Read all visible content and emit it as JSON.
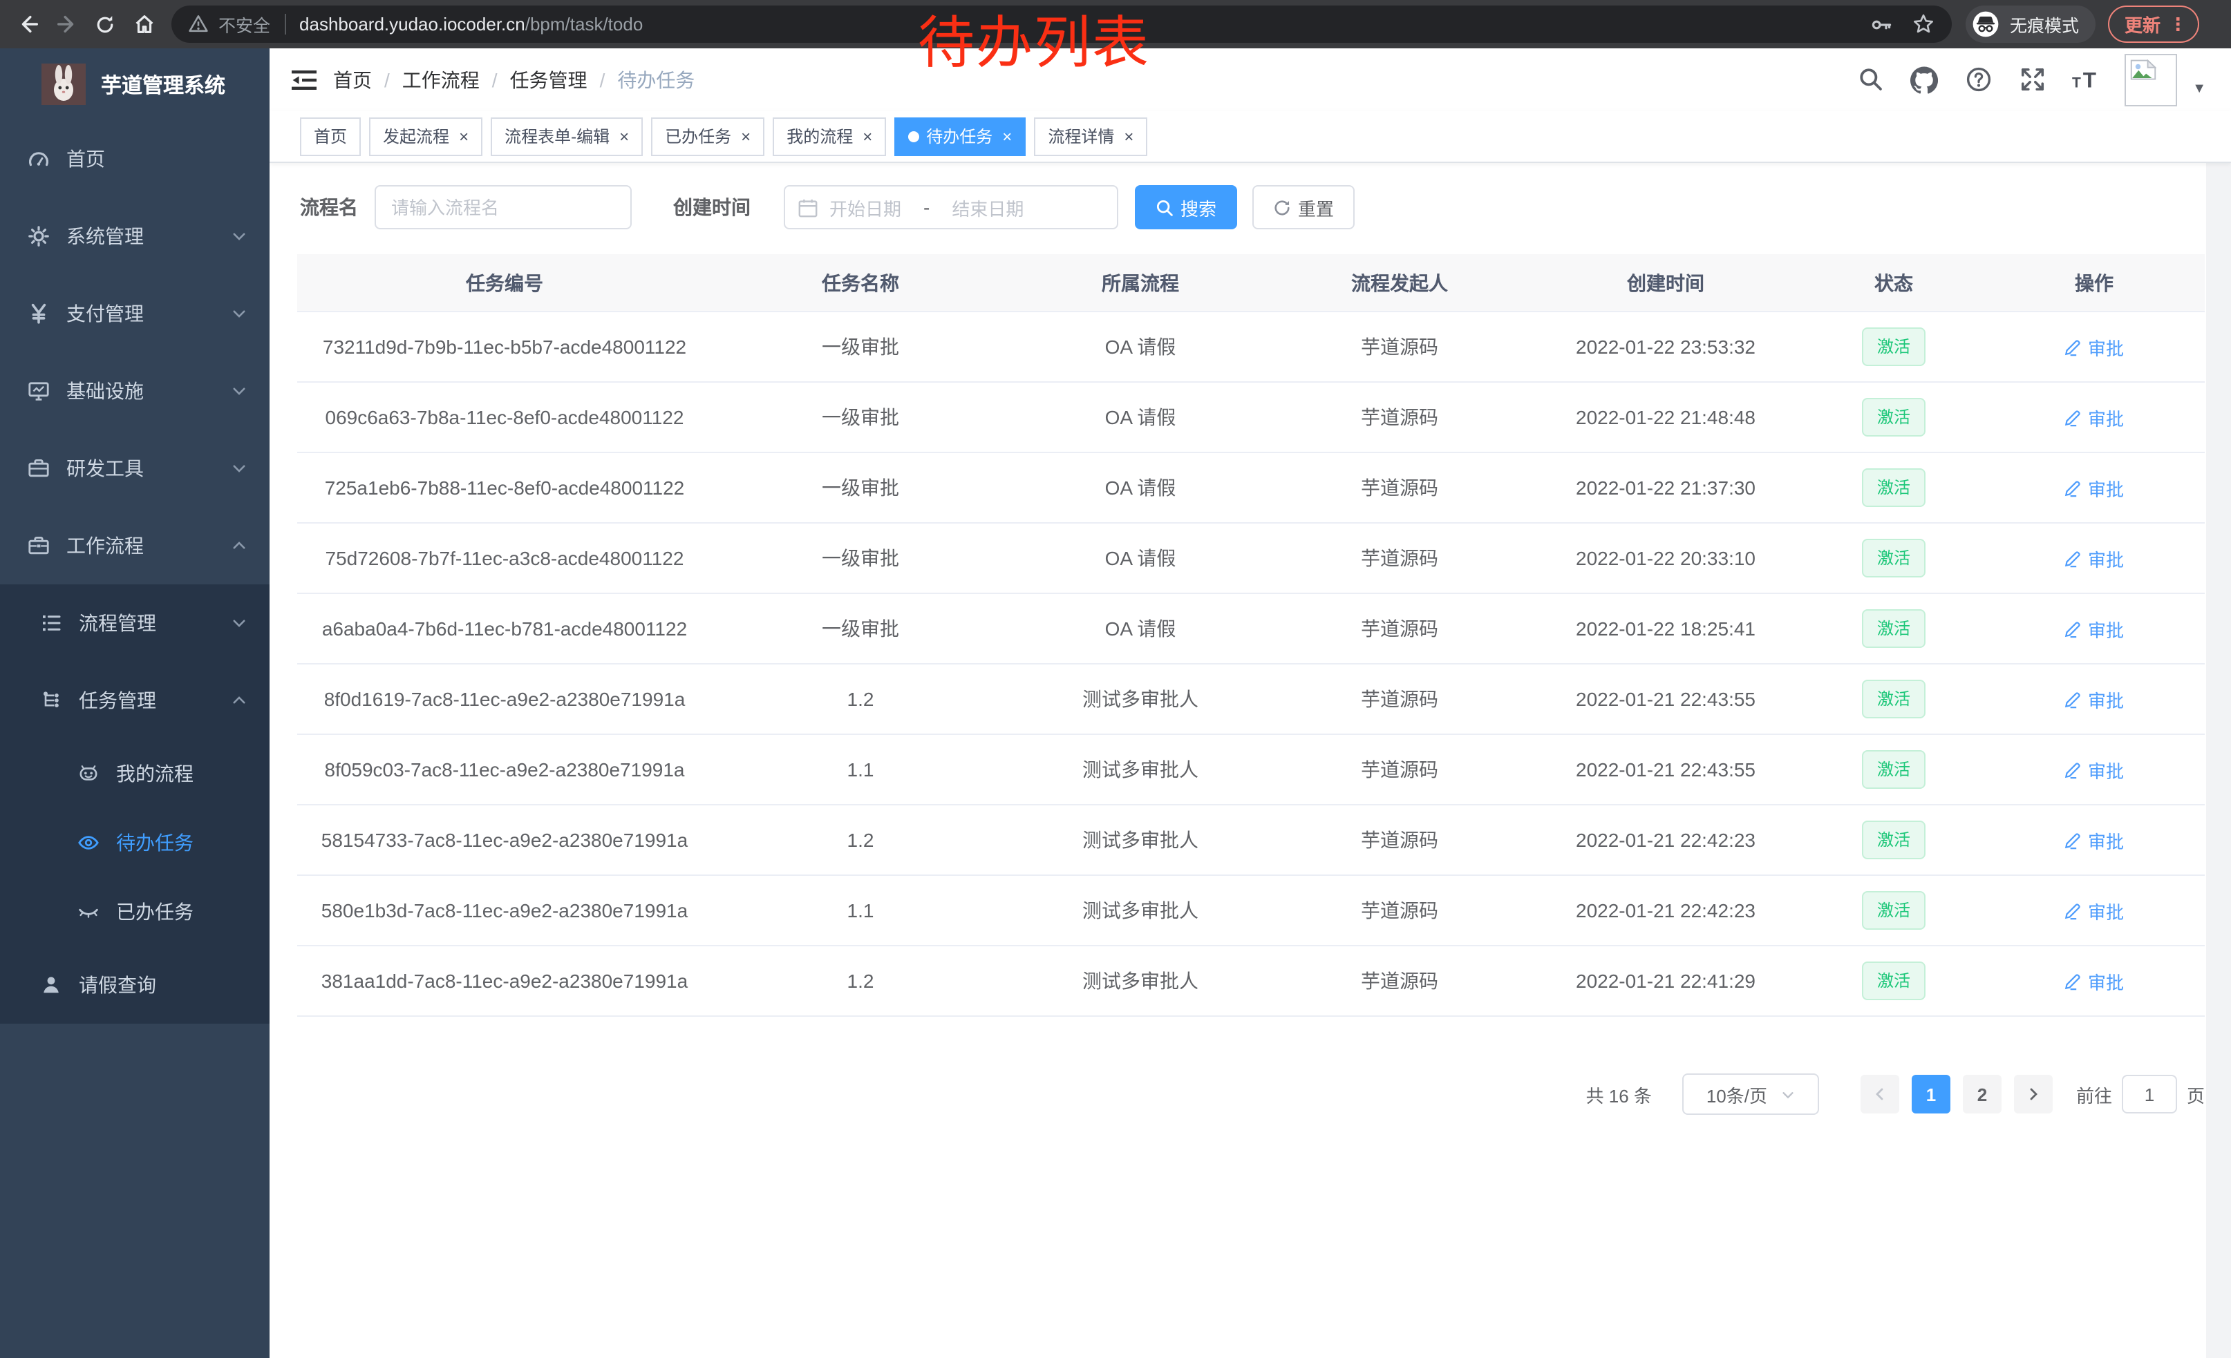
{
  "browser": {
    "security_label": "不安全",
    "url_host": "dashboard.yudao.iocoder.cn",
    "url_path": "/bpm/task/todo",
    "incognito_label": "无痕模式",
    "update_label": "更新"
  },
  "annotation": {
    "text": "待办列表",
    "color": "#fa2f14"
  },
  "sidebar": {
    "logo_title": "芋道管理系统",
    "items": [
      {
        "label": "首页",
        "icon": "dashboard",
        "level": 1
      },
      {
        "label": "系统管理",
        "icon": "gear",
        "level": 1,
        "chevron": "down"
      },
      {
        "label": "支付管理",
        "icon": "yen",
        "level": 1,
        "chevron": "down"
      },
      {
        "label": "基础设施",
        "icon": "monitor",
        "level": 1,
        "chevron": "down"
      },
      {
        "label": "研发工具",
        "icon": "toolbox",
        "level": 1,
        "chevron": "down"
      },
      {
        "label": "工作流程",
        "icon": "briefcase",
        "level": 1,
        "chevron": "up"
      }
    ],
    "submenu": [
      {
        "label": "流程管理",
        "icon": "process-list",
        "level": 2,
        "chevron": "down"
      },
      {
        "label": "任务管理",
        "icon": "task-tree",
        "level": 2,
        "chevron": "up"
      },
      {
        "label": "我的流程",
        "icon": "robot",
        "level": 3
      },
      {
        "label": "待办任务",
        "icon": "eye",
        "level": 3,
        "active": true
      },
      {
        "label": "已办任务",
        "icon": "eye-closed",
        "level": 3
      },
      {
        "label": "请假查询",
        "icon": "user",
        "level": 2
      }
    ]
  },
  "header": {
    "breadcrumb": [
      {
        "label": "首页",
        "sep": "/"
      },
      {
        "label": "工作流程",
        "sep": "/"
      },
      {
        "label": "任务管理",
        "sep": "/"
      },
      {
        "label": "待办任务",
        "current": true
      }
    ]
  },
  "tabs": [
    {
      "label": "首页"
    },
    {
      "label": "发起流程",
      "closable": true
    },
    {
      "label": "流程表单-编辑",
      "closable": true
    },
    {
      "label": "已办任务",
      "closable": true
    },
    {
      "label": "我的流程",
      "closable": true
    },
    {
      "label": "待办任务",
      "closable": true,
      "active": true
    },
    {
      "label": "流程详情",
      "closable": true
    }
  ],
  "filters": {
    "name_label": "流程名",
    "name_placeholder": "请输入流程名",
    "time_label": "创建时间",
    "start_placeholder": "开始日期",
    "range_separator": "-",
    "end_placeholder": "结束日期",
    "search_label": "搜索",
    "reset_label": "重置"
  },
  "table": {
    "columns": [
      {
        "label": "任务编号"
      },
      {
        "label": "任务名称"
      },
      {
        "label": "所属流程"
      },
      {
        "label": "流程发起人"
      },
      {
        "label": "创建时间"
      },
      {
        "label": "状态"
      },
      {
        "label": "操作"
      }
    ],
    "rows": [
      {
        "id": "73211d9d-7b9b-11ec-b5b7-acde48001122",
        "name": "一级审批",
        "process": "OA 请假",
        "starter": "芋道源码",
        "created": "2022-01-22 23:53:32",
        "status": "激活",
        "action": "审批"
      },
      {
        "id": "069c6a63-7b8a-11ec-8ef0-acde48001122",
        "name": "一级审批",
        "process": "OA 请假",
        "starter": "芋道源码",
        "created": "2022-01-22 21:48:48",
        "status": "激活",
        "action": "审批"
      },
      {
        "id": "725a1eb6-7b88-11ec-8ef0-acde48001122",
        "name": "一级审批",
        "process": "OA 请假",
        "starter": "芋道源码",
        "created": "2022-01-22 21:37:30",
        "status": "激活",
        "action": "审批"
      },
      {
        "id": "75d72608-7b7f-11ec-a3c8-acde48001122",
        "name": "一级审批",
        "process": "OA 请假",
        "starter": "芋道源码",
        "created": "2022-01-22 20:33:10",
        "status": "激活",
        "action": "审批"
      },
      {
        "id": "a6aba0a4-7b6d-11ec-b781-acde48001122",
        "name": "一级审批",
        "process": "OA 请假",
        "starter": "芋道源码",
        "created": "2022-01-22 18:25:41",
        "status": "激活",
        "action": "审批"
      },
      {
        "id": "8f0d1619-7ac8-11ec-a9e2-a2380e71991a",
        "name": "1.2",
        "process": "测试多审批人",
        "starter": "芋道源码",
        "created": "2022-01-21 22:43:55",
        "status": "激活",
        "action": "审批"
      },
      {
        "id": "8f059c03-7ac8-11ec-a9e2-a2380e71991a",
        "name": "1.1",
        "process": "测试多审批人",
        "starter": "芋道源码",
        "created": "2022-01-21 22:43:55",
        "status": "激活",
        "action": "审批"
      },
      {
        "id": "58154733-7ac8-11ec-a9e2-a2380e71991a",
        "name": "1.2",
        "process": "测试多审批人",
        "starter": "芋道源码",
        "created": "2022-01-21 22:42:23",
        "status": "激活",
        "action": "审批"
      },
      {
        "id": "580e1b3d-7ac8-11ec-a9e2-a2380e71991a",
        "name": "1.1",
        "process": "测试多审批人",
        "starter": "芋道源码",
        "created": "2022-01-21 22:42:23",
        "status": "激活",
        "action": "审批"
      },
      {
        "id": "381aa1dd-7ac8-11ec-a9e2-a2380e71991a",
        "name": "1.2",
        "process": "测试多审批人",
        "starter": "芋道源码",
        "created": "2022-01-21 22:41:29",
        "status": "激活",
        "action": "审批"
      }
    ]
  },
  "pagination": {
    "total_label": "共 16 条",
    "page_size_label": "10条/页",
    "pages": [
      {
        "label": "1",
        "active": true
      },
      {
        "label": "2"
      }
    ],
    "goto_label": "前往",
    "goto_value": "1",
    "goto_suffix": "页"
  },
  "colors": {
    "primary": "#409eff",
    "sidebar_bg": "#334357",
    "submenu_bg": "#263447",
    "status_active_text": "#1dc779",
    "status_active_bg": "#e8f9f0",
    "annotation_red": "#fa2f14"
  }
}
